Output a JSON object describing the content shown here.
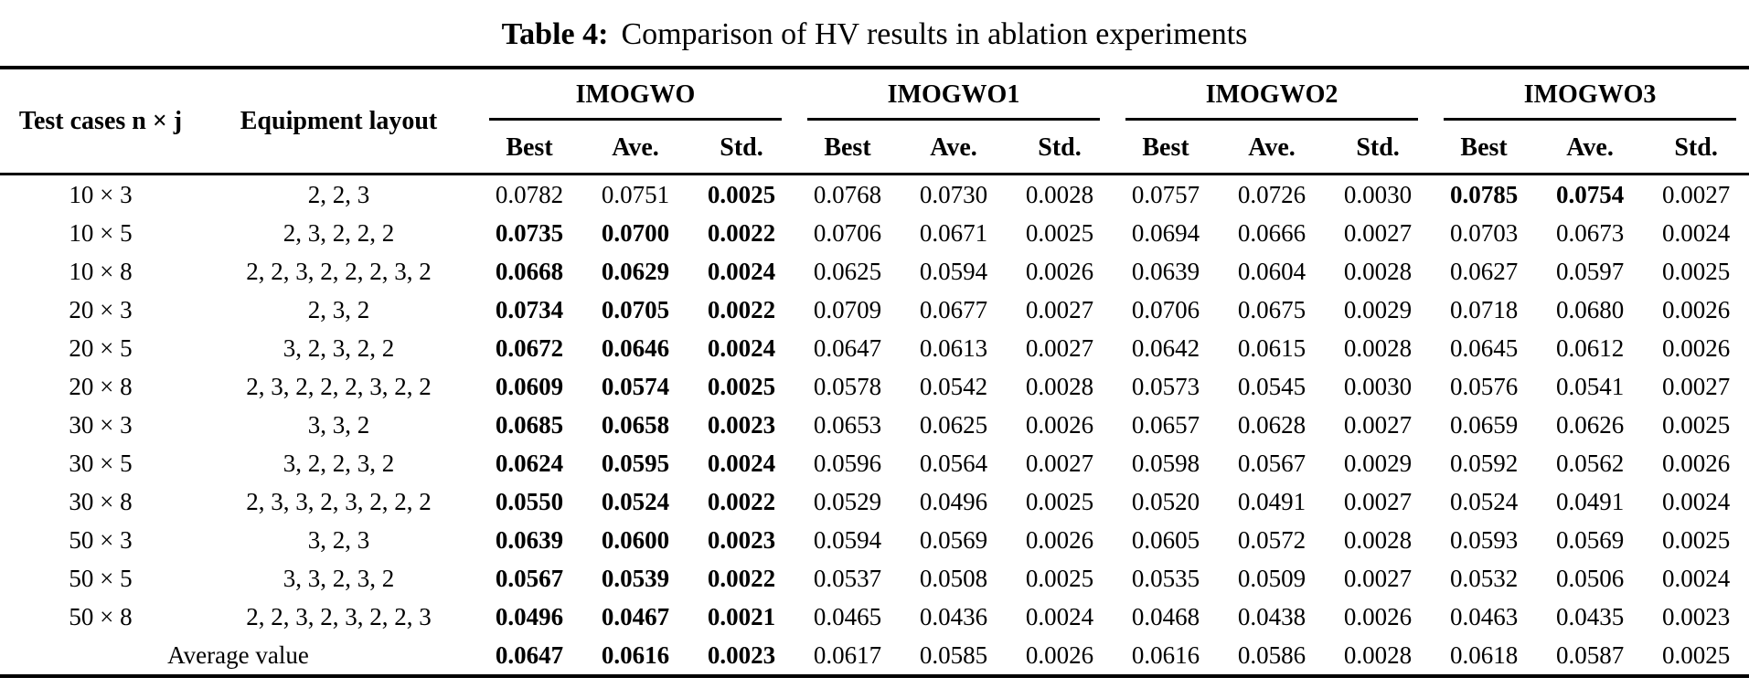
{
  "title": {
    "prefix": "Table 4:",
    "text": "Comparison of HV results in ablation experiments"
  },
  "colors": {
    "text": "#000000",
    "background": "#ffffff"
  },
  "table": {
    "col1_header": "Test cases n × j",
    "col2_header": "Equipment layout",
    "groups": [
      "IMOGWO",
      "IMOGWO1",
      "IMOGWO2",
      "IMOGWO3"
    ],
    "sub_headers": [
      "Best",
      "Ave.",
      "Std."
    ],
    "rows": [
      {
        "test_case": "10 × 3",
        "layout": "2, 2, 3",
        "values": [
          "0.0782",
          "0.0751",
          "0.0025",
          "0.0768",
          "0.0730",
          "0.0028",
          "0.0757",
          "0.0726",
          "0.0030",
          "0.0785",
          "0.0754",
          "0.0027"
        ],
        "bold": [
          false,
          false,
          true,
          false,
          false,
          false,
          false,
          false,
          false,
          true,
          true,
          false
        ]
      },
      {
        "test_case": "10 × 5",
        "layout": "2, 3, 2, 2, 2",
        "values": [
          "0.0735",
          "0.0700",
          "0.0022",
          "0.0706",
          "0.0671",
          "0.0025",
          "0.0694",
          "0.0666",
          "0.0027",
          "0.0703",
          "0.0673",
          "0.0024"
        ],
        "bold": [
          true,
          true,
          true,
          false,
          false,
          false,
          false,
          false,
          false,
          false,
          false,
          false
        ]
      },
      {
        "test_case": "10 × 8",
        "layout": "2, 2, 3, 2, 2, 2, 3, 2",
        "values": [
          "0.0668",
          "0.0629",
          "0.0024",
          "0.0625",
          "0.0594",
          "0.0026",
          "0.0639",
          "0.0604",
          "0.0028",
          "0.0627",
          "0.0597",
          "0.0025"
        ],
        "bold": [
          true,
          true,
          true,
          false,
          false,
          false,
          false,
          false,
          false,
          false,
          false,
          false
        ]
      },
      {
        "test_case": "20 × 3",
        "layout": "2, 3, 2",
        "values": [
          "0.0734",
          "0.0705",
          "0.0022",
          "0.0709",
          "0.0677",
          "0.0027",
          "0.0706",
          "0.0675",
          "0.0029",
          "0.0718",
          "0.0680",
          "0.0026"
        ],
        "bold": [
          true,
          true,
          true,
          false,
          false,
          false,
          false,
          false,
          false,
          false,
          false,
          false
        ]
      },
      {
        "test_case": "20 × 5",
        "layout": "3, 2, 3, 2, 2",
        "values": [
          "0.0672",
          "0.0646",
          "0.0024",
          "0.0647",
          "0.0613",
          "0.0027",
          "0.0642",
          "0.0615",
          "0.0028",
          "0.0645",
          "0.0612",
          "0.0026"
        ],
        "bold": [
          true,
          true,
          true,
          false,
          false,
          false,
          false,
          false,
          false,
          false,
          false,
          false
        ]
      },
      {
        "test_case": "20 × 8",
        "layout": "2, 3, 2, 2, 2, 3, 2, 2",
        "values": [
          "0.0609",
          "0.0574",
          "0.0025",
          "0.0578",
          "0.0542",
          "0.0028",
          "0.0573",
          "0.0545",
          "0.0030",
          "0.0576",
          "0.0541",
          "0.0027"
        ],
        "bold": [
          true,
          true,
          true,
          false,
          false,
          false,
          false,
          false,
          false,
          false,
          false,
          false
        ]
      },
      {
        "test_case": "30 × 3",
        "layout": "3, 3, 2",
        "values": [
          "0.0685",
          "0.0658",
          "0.0023",
          "0.0653",
          "0.0625",
          "0.0026",
          "0.0657",
          "0.0628",
          "0.0027",
          "0.0659",
          "0.0626",
          "0.0025"
        ],
        "bold": [
          true,
          true,
          true,
          false,
          false,
          false,
          false,
          false,
          false,
          false,
          false,
          false
        ]
      },
      {
        "test_case": "30 × 5",
        "layout": "3, 2, 2, 3, 2",
        "values": [
          "0.0624",
          "0.0595",
          "0.0024",
          "0.0596",
          "0.0564",
          "0.0027",
          "0.0598",
          "0.0567",
          "0.0029",
          "0.0592",
          "0.0562",
          "0.0026"
        ],
        "bold": [
          true,
          true,
          true,
          false,
          false,
          false,
          false,
          false,
          false,
          false,
          false,
          false
        ]
      },
      {
        "test_case": "30 × 8",
        "layout": "2, 3, 3, 2, 3, 2, 2, 2",
        "values": [
          "0.0550",
          "0.0524",
          "0.0022",
          "0.0529",
          "0.0496",
          "0.0025",
          "0.0520",
          "0.0491",
          "0.0027",
          "0.0524",
          "0.0491",
          "0.0024"
        ],
        "bold": [
          true,
          true,
          true,
          false,
          false,
          false,
          false,
          false,
          false,
          false,
          false,
          false
        ]
      },
      {
        "test_case": "50 × 3",
        "layout": "3, 2, 3",
        "values": [
          "0.0639",
          "0.0600",
          "0.0023",
          "0.0594",
          "0.0569",
          "0.0026",
          "0.0605",
          "0.0572",
          "0.0028",
          "0.0593",
          "0.0569",
          "0.0025"
        ],
        "bold": [
          true,
          true,
          true,
          false,
          false,
          false,
          false,
          false,
          false,
          false,
          false,
          false
        ]
      },
      {
        "test_case": "50 × 5",
        "layout": "3, 3, 2, 3, 2",
        "values": [
          "0.0567",
          "0.0539",
          "0.0022",
          "0.0537",
          "0.0508",
          "0.0025",
          "0.0535",
          "0.0509",
          "0.0027",
          "0.0532",
          "0.0506",
          "0.0024"
        ],
        "bold": [
          true,
          true,
          true,
          false,
          false,
          false,
          false,
          false,
          false,
          false,
          false,
          false
        ]
      },
      {
        "test_case": "50 × 8",
        "layout": "2, 2, 3, 2, 3, 2, 2, 3",
        "values": [
          "0.0496",
          "0.0467",
          "0.0021",
          "0.0465",
          "0.0436",
          "0.0024",
          "0.0468",
          "0.0438",
          "0.0026",
          "0.0463",
          "0.0435",
          "0.0023"
        ],
        "bold": [
          true,
          true,
          true,
          false,
          false,
          false,
          false,
          false,
          false,
          false,
          false,
          false
        ]
      },
      {
        "label": "Average value",
        "values": [
          "0.0647",
          "0.0616",
          "0.0023",
          "0.0617",
          "0.0585",
          "0.0026",
          "0.0616",
          "0.0586",
          "0.0028",
          "0.0618",
          "0.0587",
          "0.0025"
        ],
        "bold": [
          true,
          true,
          true,
          false,
          false,
          false,
          false,
          false,
          false,
          false,
          false,
          false
        ]
      }
    ]
  }
}
